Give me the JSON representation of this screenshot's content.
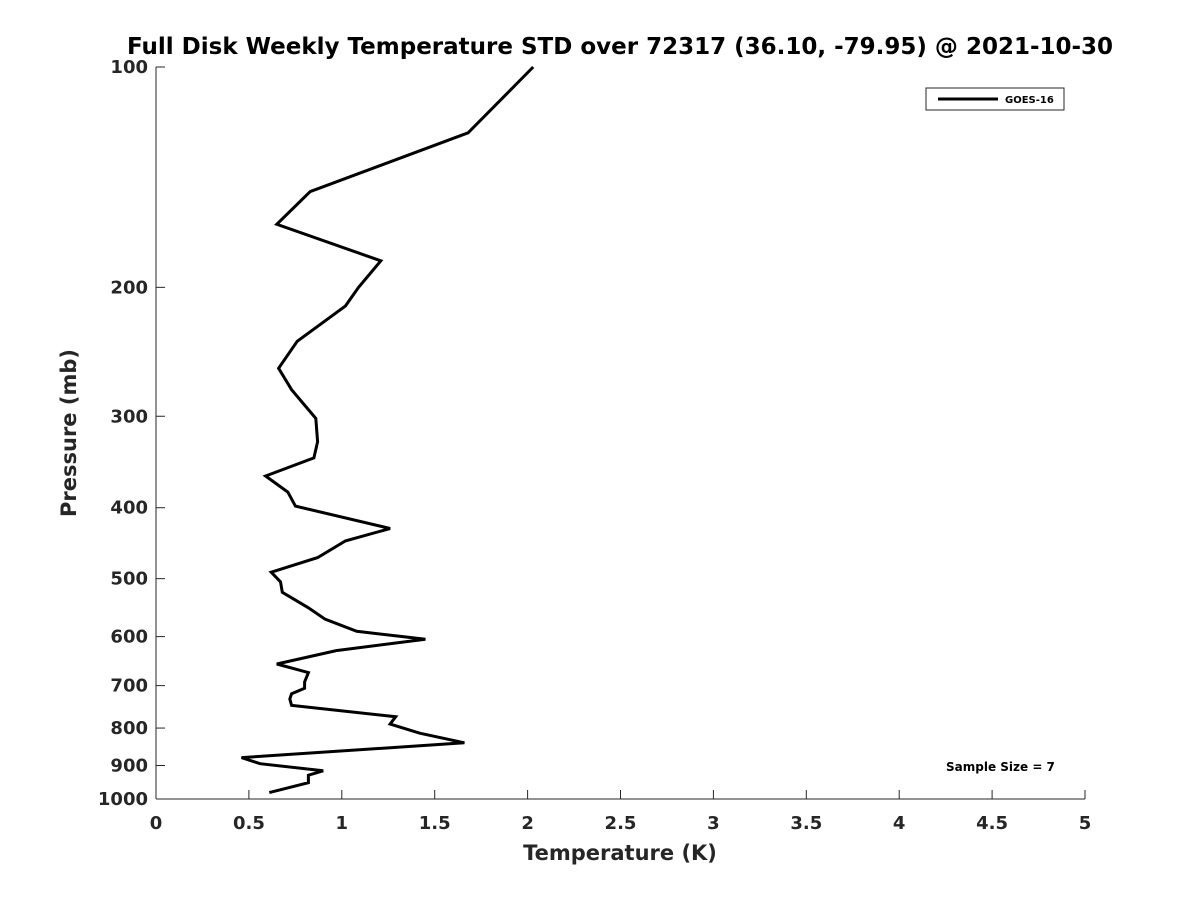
{
  "chart_data": {
    "type": "line",
    "title": "Full Disk Weekly Temperature STD over 72317 (36.10, -79.95) @ 2021-10-30",
    "xlabel": "Temperature (K)",
    "ylabel": "Pressure (mb)",
    "xlim": [
      0,
      5
    ],
    "ylim": [
      100,
      1000
    ],
    "yscale": "log",
    "yaxis_reversed": true,
    "xticks": [
      "0",
      "0.5",
      "1",
      "1.5",
      "2",
      "2.5",
      "3",
      "3.5",
      "4",
      "4.5",
      "5"
    ],
    "yticks": [
      "100",
      "200",
      "300",
      "400",
      "500",
      "600",
      "700",
      "800",
      "900",
      "1000"
    ],
    "grid": false,
    "legend_position": "top-right",
    "annotation": "Sample Size = 7",
    "series": [
      {
        "name": "GOES-16",
        "color": "#000000",
        "x": [
          2.03,
          1.68,
          0.83,
          0.65,
          1.21,
          1.09,
          1.02,
          0.76,
          0.66,
          0.73,
          0.86,
          0.87,
          0.85,
          0.59,
          0.71,
          0.75,
          1.26,
          1.02,
          0.87,
          0.62,
          0.67,
          0.68,
          0.82,
          0.91,
          1.08,
          1.45,
          0.97,
          0.65,
          0.82,
          0.8,
          0.8,
          0.73,
          0.72,
          0.73,
          1.29,
          1.26,
          1.42,
          1.66,
          0.46,
          0.56,
          0.9,
          0.82,
          0.82,
          0.61
        ],
        "y": [
          100,
          123,
          148,
          164,
          184,
          200,
          212,
          237,
          258,
          276,
          302,
          325,
          342,
          362,
          381,
          398,
          427,
          444,
          468,
          490,
          505,
          522,
          548,
          568,
          590,
          605,
          627,
          654,
          672,
          692,
          706,
          718,
          730,
          745,
          772,
          790,
          813,
          838,
          878,
          895,
          915,
          928,
          950,
          980
        ]
      }
    ]
  }
}
